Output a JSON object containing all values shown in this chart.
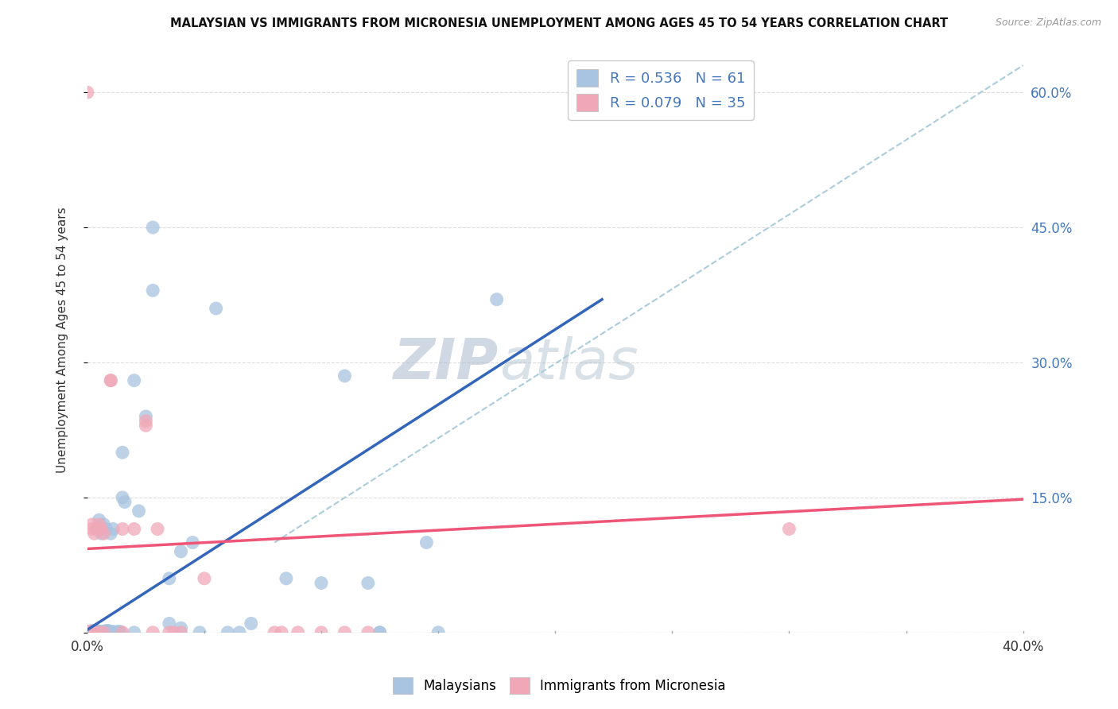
{
  "title": "MALAYSIAN VS IMMIGRANTS FROM MICRONESIA UNEMPLOYMENT AMONG AGES 45 TO 54 YEARS CORRELATION CHART",
  "source": "Source: ZipAtlas.com",
  "ylabel": "Unemployment Among Ages 45 to 54 years",
  "xlim": [
    0.0,
    0.4
  ],
  "ylim": [
    0.0,
    0.65
  ],
  "xticks": [
    0.0,
    0.05,
    0.1,
    0.15,
    0.2,
    0.25,
    0.3,
    0.35,
    0.4
  ],
  "yticks_right": [
    0.0,
    0.15,
    0.3,
    0.45,
    0.6
  ],
  "ytick_right_labels": [
    "",
    "15.0%",
    "30.0%",
    "45.0%",
    "60.0%"
  ],
  "R_blue": 0.536,
  "N_blue": 61,
  "R_pink": 0.079,
  "N_pink": 35,
  "blue_color": "#A8C4E0",
  "pink_color": "#F0A8B8",
  "blue_line_color": "#3366BB",
  "pink_line_color": "#EE5577",
  "blue_scatter": [
    [
      0.0,
      0.0
    ],
    [
      0.0,
      0.001
    ],
    [
      0.001,
      0.0
    ],
    [
      0.001,
      0.001
    ],
    [
      0.002,
      0.0
    ],
    [
      0.002,
      0.001
    ],
    [
      0.002,
      0.002
    ],
    [
      0.003,
      0.0
    ],
    [
      0.003,
      0.001
    ],
    [
      0.003,
      0.002
    ],
    [
      0.004,
      0.0
    ],
    [
      0.004,
      0.001
    ],
    [
      0.004,
      0.002
    ],
    [
      0.005,
      0.0
    ],
    [
      0.005,
      0.001
    ],
    [
      0.005,
      0.115
    ],
    [
      0.005,
      0.125
    ],
    [
      0.006,
      0.0
    ],
    [
      0.006,
      0.001
    ],
    [
      0.006,
      0.11
    ],
    [
      0.007,
      0.001
    ],
    [
      0.007,
      0.12
    ],
    [
      0.008,
      0.002
    ],
    [
      0.008,
      0.115
    ],
    [
      0.009,
      0.001
    ],
    [
      0.009,
      0.002
    ],
    [
      0.01,
      0.0
    ],
    [
      0.01,
      0.11
    ],
    [
      0.011,
      0.001
    ],
    [
      0.011,
      0.115
    ],
    [
      0.012,
      0.0
    ],
    [
      0.013,
      0.001
    ],
    [
      0.014,
      0.001
    ],
    [
      0.015,
      0.15
    ],
    [
      0.015,
      0.2
    ],
    [
      0.016,
      0.145
    ],
    [
      0.02,
      0.28
    ],
    [
      0.022,
      0.135
    ],
    [
      0.025,
      0.24
    ],
    [
      0.028,
      0.45
    ],
    [
      0.028,
      0.38
    ],
    [
      0.035,
      0.06
    ],
    [
      0.035,
      0.01
    ],
    [
      0.04,
      0.09
    ],
    [
      0.04,
      0.005
    ],
    [
      0.045,
      0.1
    ],
    [
      0.048,
      0.0
    ],
    [
      0.055,
      0.36
    ],
    [
      0.06,
      0.0
    ],
    [
      0.065,
      0.0
    ],
    [
      0.07,
      0.01
    ],
    [
      0.085,
      0.06
    ],
    [
      0.1,
      0.055
    ],
    [
      0.11,
      0.285
    ],
    [
      0.12,
      0.055
    ],
    [
      0.125,
      0.0
    ],
    [
      0.125,
      0.0
    ],
    [
      0.145,
      0.1
    ],
    [
      0.15,
      0.0
    ],
    [
      0.175,
      0.37
    ],
    [
      0.02,
      0.0
    ]
  ],
  "pink_scatter": [
    [
      0.0,
      0.6
    ],
    [
      0.0,
      0.0
    ],
    [
      0.001,
      0.0
    ],
    [
      0.001,
      0.001
    ],
    [
      0.002,
      0.0
    ],
    [
      0.002,
      0.115
    ],
    [
      0.002,
      0.12
    ],
    [
      0.003,
      0.0
    ],
    [
      0.003,
      0.11
    ],
    [
      0.004,
      0.115
    ],
    [
      0.005,
      0.0
    ],
    [
      0.005,
      0.12
    ],
    [
      0.006,
      0.115
    ],
    [
      0.007,
      0.0
    ],
    [
      0.007,
      0.11
    ],
    [
      0.01,
      0.28
    ],
    [
      0.01,
      0.28
    ],
    [
      0.015,
      0.0
    ],
    [
      0.015,
      0.115
    ],
    [
      0.02,
      0.115
    ],
    [
      0.025,
      0.23
    ],
    [
      0.025,
      0.235
    ],
    [
      0.028,
      0.0
    ],
    [
      0.03,
      0.115
    ],
    [
      0.035,
      0.0
    ],
    [
      0.037,
      0.0
    ],
    [
      0.04,
      0.0
    ],
    [
      0.05,
      0.06
    ],
    [
      0.08,
      0.0
    ],
    [
      0.083,
      0.0
    ],
    [
      0.09,
      0.0
    ],
    [
      0.1,
      0.0
    ],
    [
      0.11,
      0.0
    ],
    [
      0.12,
      0.0
    ],
    [
      0.3,
      0.115
    ]
  ],
  "blue_line_x": [
    0.0,
    0.22
  ],
  "blue_line_y": [
    0.003,
    0.37
  ],
  "pink_line_x": [
    0.0,
    0.4
  ],
  "pink_line_y": [
    0.093,
    0.148
  ],
  "diag_line_x": [
    0.08,
    0.4
  ],
  "diag_line_y": [
    0.1,
    0.63
  ],
  "watermark_zip": "ZIP",
  "watermark_atlas": "atlas",
  "watermark_color": "#AABBCC",
  "background_color": "#FFFFFF",
  "grid_color": "#DDDDDD"
}
